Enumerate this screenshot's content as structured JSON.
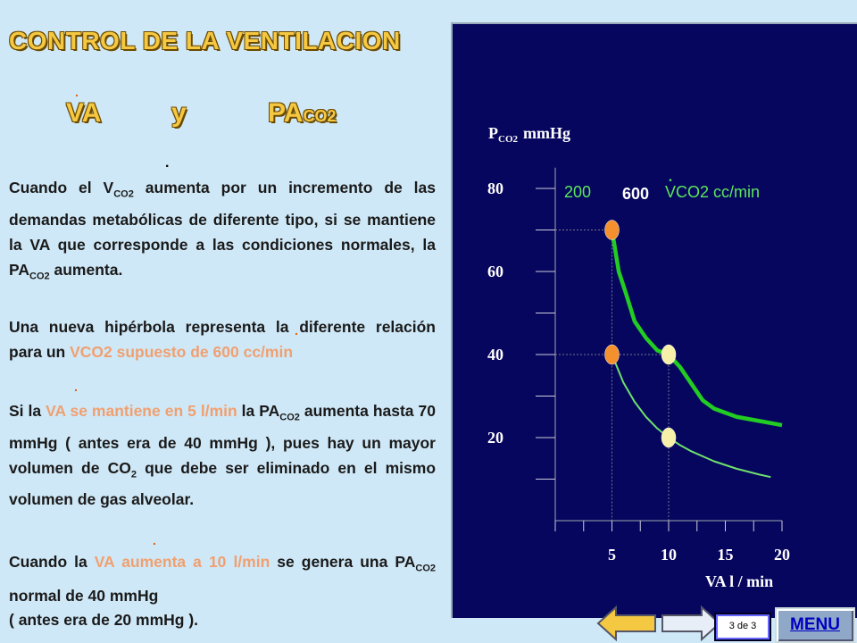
{
  "title": "CONTROL DE LA VENTILACION",
  "subtitle": {
    "va": "VA",
    "y": "y",
    "pa": "PA",
    "co2": "CO2"
  },
  "paragraphs": {
    "p1_a": "Cuando el V",
    "p1_sub": "CO2",
    "p1_b": " aumenta por un incremento de las demandas metabólicas de diferente tipo, si se mantiene la VA que corresponde a las condiciones normales, la PA",
    "p1_sub2": "CO2",
    "p1_c": " aumenta.",
    "p2_a": "Una nueva hipérbola representa la diferente relación para un ",
    "p2_b": "VCO2 supuesto de 600 cc/min",
    "p3_a": "Si la ",
    "p3_b": "VA se mantiene en 5 l/min",
    "p3_c": " la PA",
    "p3_sub": "CO2",
    "p3_d": " aumenta hasta 70 mmHg ( antes era de 40 mmHg ), pues hay un mayor volumen de CO",
    "p3_sub2": "2",
    "p3_e": " que debe ser eliminado en el mismo volumen de gas alveolar.",
    "p4_a": "Cuando la ",
    "p4_b": "VA aumenta a 10 l/min",
    "p4_c": " se genera una PA",
    "p4_sub": "CO2",
    "p4_d": " normal de 40 mmHg",
    "p4_e": "( antes era de 20 mmHg )."
  },
  "chart_data": {
    "type": "line",
    "ylabel": "P",
    "ylabel_sub": "CO2",
    "ylabel_unit": "mmHg",
    "xlabel": "VA  l / min",
    "y_ticks": [
      20,
      40,
      60,
      80
    ],
    "x_ticks": [
      5,
      10,
      15,
      20
    ],
    "xlim": [
      0,
      20
    ],
    "ylim": [
      0,
      85
    ],
    "legend": {
      "v200": "200",
      "v600": "600",
      "unit": "VCO2 cc/min"
    },
    "series": [
      {
        "name": "200",
        "x": [
          5,
          6,
          7,
          8,
          9,
          10,
          11,
          12,
          14,
          16,
          18,
          19
        ],
        "y": [
          40,
          33.3,
          28.6,
          25,
          22.2,
          20,
          18.2,
          16.7,
          14.3,
          12.5,
          11.1,
          10.5
        ]
      },
      {
        "name": "600",
        "x": [
          5,
          5.6,
          6.2,
          7,
          8,
          9,
          10,
          11,
          12,
          13,
          14,
          16,
          18,
          20
        ],
        "y": [
          70,
          60,
          55,
          48,
          44,
          41,
          40,
          37,
          33,
          29,
          27,
          25,
          24,
          23
        ]
      }
    ],
    "points": [
      {
        "x": 5,
        "y": 70,
        "color": "#f5902e"
      },
      {
        "x": 5,
        "y": 40,
        "color": "#f5902e"
      },
      {
        "x": 10,
        "y": 40,
        "color": "#f6f0a8"
      },
      {
        "x": 10,
        "y": 20,
        "color": "#f6f0a8"
      }
    ]
  },
  "nav": {
    "page": "3 de 3",
    "menu": "MENU"
  }
}
